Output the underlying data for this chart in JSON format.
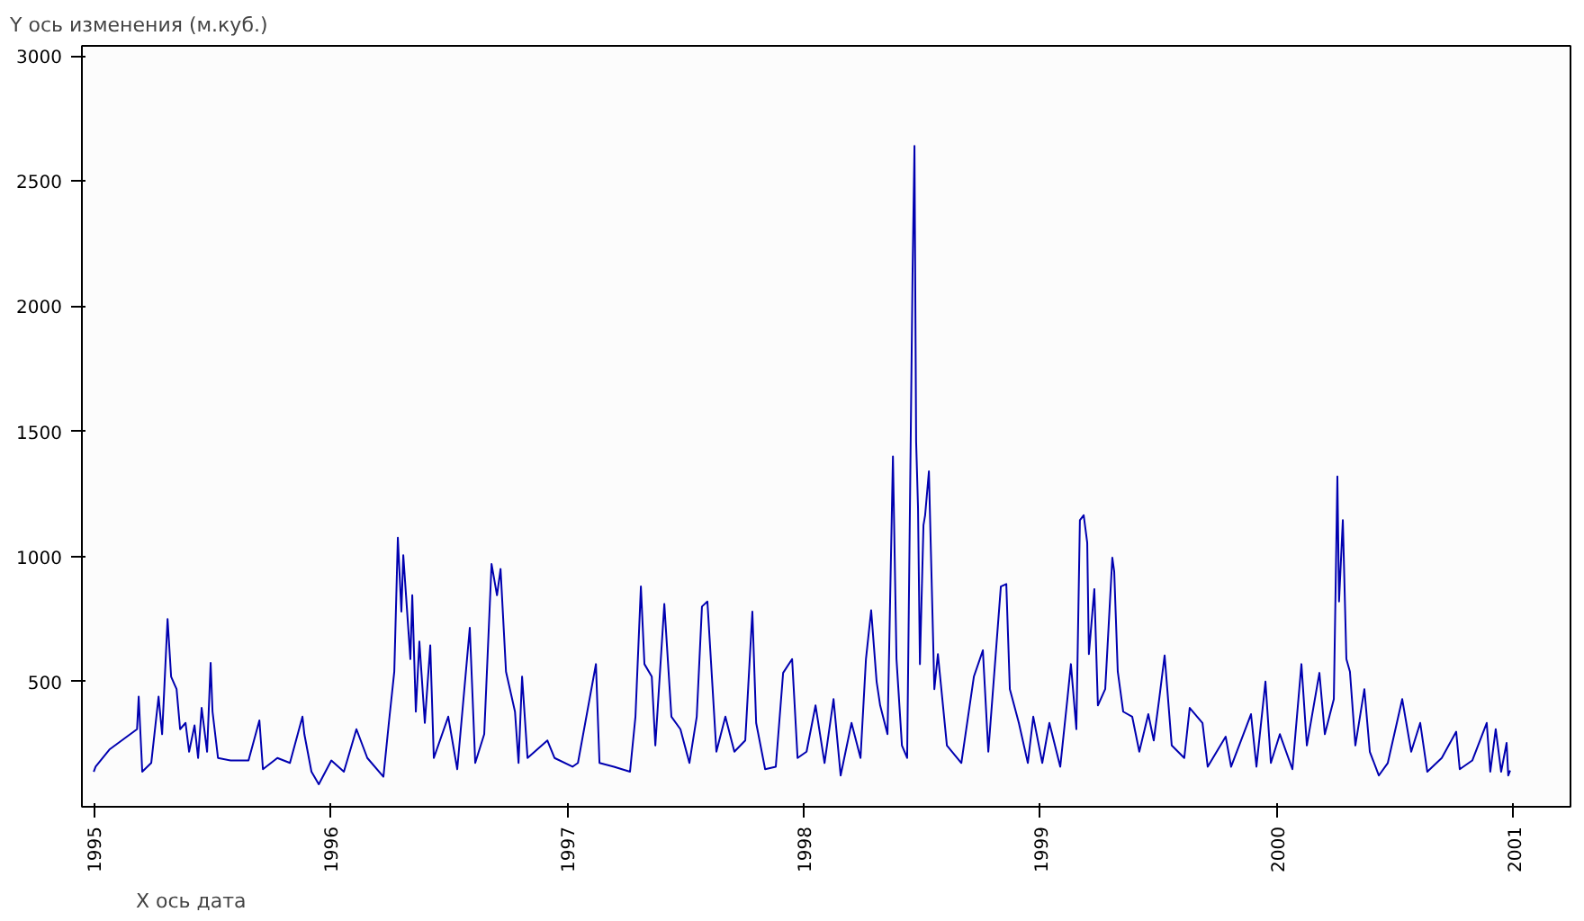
{
  "chart_data": {
    "type": "line",
    "xlabel": "X ось дата",
    "ylabel": "Y ось изменения (м.куб.)",
    "xlim": [
      1994.95,
      2001.24
    ],
    "ylim": [
      0,
      3040
    ],
    "xticks": [
      1995,
      1996,
      1997,
      1998,
      1999,
      2000,
      2001
    ],
    "yticks": [
      500,
      1000,
      1500,
      2000,
      2500,
      3000
    ],
    "grid": false,
    "marker": "none",
    "line_style": "solid",
    "series": [
      {
        "color": "#0000b0",
        "x": [
          1995.0,
          1995.008,
          1995.068,
          1995.183,
          1995.19,
          1995.205,
          1995.243,
          1995.274,
          1995.289,
          1995.312,
          1995.327,
          1995.35,
          1995.365,
          1995.388,
          1995.403,
          1995.426,
          1995.441,
          1995.456,
          1995.479,
          1995.494,
          1995.502,
          1995.525,
          1995.578,
          1995.654,
          1995.7,
          1995.715,
          1995.776,
          1995.829,
          1995.882,
          1995.89,
          1995.92,
          1995.951,
          1996.004,
          1996.057,
          1996.11,
          1996.156,
          1996.224,
          1996.247,
          1996.27,
          1996.285,
          1996.3,
          1996.308,
          1996.338,
          1996.346,
          1996.361,
          1996.376,
          1996.399,
          1996.422,
          1996.437,
          1996.498,
          1996.536,
          1996.589,
          1996.612,
          1996.65,
          1996.681,
          1996.704,
          1996.719,
          1996.742,
          1996.78,
          1996.795,
          1996.81,
          1996.833,
          1996.917,
          1996.947,
          1997.023,
          1997.046,
          1997.122,
          1997.137,
          1997.198,
          1997.266,
          1997.289,
          1997.312,
          1997.327,
          1997.358,
          1997.373,
          1997.411,
          1997.441,
          1997.479,
          1997.517,
          1997.548,
          1997.57,
          1997.593,
          1997.631,
          1997.669,
          1997.707,
          1997.753,
          1997.783,
          1997.799,
          1997.837,
          1997.882,
          1997.913,
          1997.951,
          1997.974,
          1998.012,
          1998.05,
          1998.088,
          1998.126,
          1998.156,
          1998.202,
          1998.24,
          1998.263,
          1998.285,
          1998.308,
          1998.323,
          1998.354,
          1998.377,
          1998.392,
          1998.415,
          1998.437,
          1998.46,
          1998.468,
          1998.475,
          1998.483,
          1998.491,
          1998.506,
          1998.513,
          1998.529,
          1998.552,
          1998.567,
          1998.605,
          1998.666,
          1998.719,
          1998.757,
          1998.78,
          1998.833,
          1998.856,
          1998.871,
          1998.909,
          1998.947,
          1998.97,
          1999.008,
          1999.038,
          1999.084,
          1999.114,
          1999.129,
          1999.152,
          1999.167,
          1999.183,
          1999.198,
          1999.205,
          1999.228,
          1999.243,
          1999.274,
          1999.304,
          1999.312,
          1999.327,
          1999.35,
          1999.388,
          1999.418,
          1999.456,
          1999.479,
          1999.502,
          1999.525,
          1999.555,
          1999.608,
          1999.631,
          1999.685,
          1999.707,
          1999.783,
          1999.806,
          1999.89,
          1999.913,
          1999.951,
          1999.974,
          2000.012,
          2000.065,
          2000.103,
          2000.126,
          2000.179,
          2000.202,
          2000.24,
          2000.255,
          2000.262,
          2000.278,
          2000.293,
          2000.308,
          2000.331,
          2000.369,
          2000.392,
          2000.43,
          2000.468,
          2000.529,
          2000.567,
          2000.605,
          2000.635,
          2000.696,
          2000.757,
          2000.772,
          2000.825,
          2000.886,
          2000.901,
          2000.924,
          2000.947,
          2000.97,
          2000.977,
          2000.985
        ],
        "values": [
          140,
          160,
          230,
          310,
          440,
          140,
          175,
          440,
          290,
          750,
          520,
          470,
          310,
          335,
          220,
          325,
          195,
          395,
          220,
          575,
          380,
          195,
          185,
          185,
          345,
          150,
          195,
          175,
          360,
          290,
          140,
          90,
          185,
          140,
          310,
          195,
          120,
          335,
          540,
          1075,
          780,
          1005,
          590,
          845,
          380,
          660,
          335,
          645,
          195,
          360,
          150,
          715,
          175,
          290,
          970,
          845,
          950,
          540,
          380,
          175,
          520,
          195,
          265,
          195,
          160,
          175,
          570,
          175,
          160,
          140,
          360,
          880,
          570,
          520,
          245,
          810,
          360,
          310,
          175,
          360,
          800,
          820,
          220,
          360,
          220,
          265,
          780,
          335,
          150,
          160,
          535,
          590,
          195,
          220,
          405,
          175,
          430,
          125,
          335,
          195,
          590,
          785,
          500,
          405,
          290,
          1400,
          590,
          245,
          195,
          2140,
          2640,
          1460,
          1195,
          570,
          1125,
          1165,
          1340,
          470,
          610,
          245,
          175,
          520,
          625,
          220,
          880,
          890,
          470,
          335,
          175,
          360,
          175,
          335,
          160,
          430,
          570,
          310,
          1145,
          1165,
          1055,
          610,
          870,
          405,
          470,
          995,
          940,
          540,
          380,
          360,
          220,
          370,
          265,
          430,
          605,
          245,
          195,
          395,
          335,
          160,
          280,
          160,
          370,
          160,
          500,
          175,
          290,
          150,
          570,
          245,
          535,
          290,
          430,
          1320,
          820,
          1145,
          590,
          540,
          245,
          470,
          220,
          125,
          175,
          430,
          220,
          335,
          140,
          195,
          300,
          150,
          185,
          335,
          140,
          310,
          140,
          255,
          125,
          145
        ]
      }
    ]
  }
}
